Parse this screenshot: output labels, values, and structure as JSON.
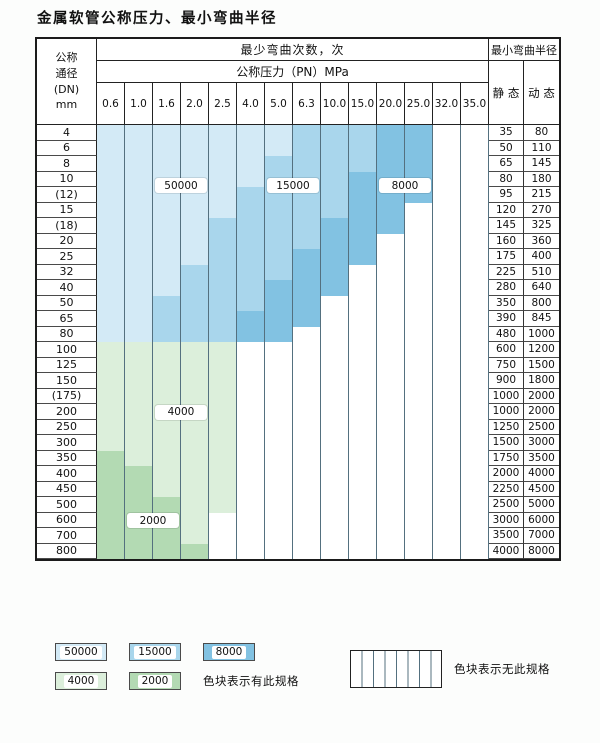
{
  "title": "金属软管公称压力、最小弯曲半径",
  "header": {
    "dn_label_lines": [
      "公称",
      "通径",
      "(DN)",
      "mm"
    ],
    "cycles_label": "最少弯曲次数，次",
    "pressure_label": "公称压力（PN）MPa",
    "radius_label": "最小弯曲半径",
    "static_label": "静 态",
    "dynamic_label": "动 态",
    "pressures": [
      "0.6",
      "1.0",
      "1.6",
      "2.0",
      "2.5",
      "4.0",
      "5.0",
      "6.3",
      "10.0",
      "15.0",
      "20.0",
      "25.0",
      "32.0",
      "35.0"
    ]
  },
  "chart_data": {
    "type": "heatmap",
    "title": "金属软管公称压力、最小弯曲半径",
    "xlabel": "公称压力（PN）MPa",
    "ylabel": "公称通径(DN) mm",
    "x_ticks": [
      "0.6",
      "1.0",
      "1.6",
      "2.0",
      "2.5",
      "4.0",
      "5.0",
      "6.3",
      "10.0",
      "15.0",
      "20.0",
      "25.0",
      "32.0",
      "35.0"
    ],
    "legend_classes": {
      "a": {
        "cycles": "50000",
        "color": "#d3eaf6"
      },
      "b": {
        "cycles": "15000",
        "color": "#a9d6ec"
      },
      "c": {
        "cycles": "8000",
        "color": "#82c2e2"
      },
      "d": {
        "cycles": "4000",
        "color": "#dcefdb"
      },
      "e": {
        "cycles": "2000",
        "color": "#b3dab3"
      },
      "x": {
        "cycles": "无此规格",
        "color": "#ffffff"
      }
    },
    "rows": [
      {
        "dn": "4",
        "cells": "aaaaaaabbbccxx",
        "static": "35",
        "dynamic": "80"
      },
      {
        "dn": "6",
        "cells": "aaaaaaabbbccxx",
        "static": "50",
        "dynamic": "110"
      },
      {
        "dn": "8",
        "cells": "aaaaaabbbbccxx",
        "static": "65",
        "dynamic": "145"
      },
      {
        "dn": "10",
        "cells": "aaaaaabbbcccxx",
        "static": "80",
        "dynamic": "180"
      },
      {
        "dn": "(12)",
        "cells": "aaaaabbbbcccxx",
        "static": "95",
        "dynamic": "215"
      },
      {
        "dn": "15",
        "cells": "aaaaabbbbccxxx",
        "static": "120",
        "dynamic": "270"
      },
      {
        "dn": "(18)",
        "cells": "aaaabbbbcccxxx",
        "static": "145",
        "dynamic": "325"
      },
      {
        "dn": "20",
        "cells": "aaaabbbbccxxxx",
        "static": "160",
        "dynamic": "360"
      },
      {
        "dn": "25",
        "cells": "aaaabbbcccxxxx",
        "static": "175",
        "dynamic": "400"
      },
      {
        "dn": "32",
        "cells": "aaabbbbccxxxxx",
        "static": "225",
        "dynamic": "510"
      },
      {
        "dn": "40",
        "cells": "aaabbbcccxxxxx",
        "static": "280",
        "dynamic": "640"
      },
      {
        "dn": "50",
        "cells": "aabbbbccxxxxxx",
        "static": "350",
        "dynamic": "800"
      },
      {
        "dn": "65",
        "cells": "aabbbcccxxxxxx",
        "static": "390",
        "dynamic": "845"
      },
      {
        "dn": "80",
        "cells": "aabbbccxxxxxxx",
        "static": "480",
        "dynamic": "1000"
      },
      {
        "dn": "100",
        "cells": "dddddxxxxxxxxx",
        "static": "600",
        "dynamic": "1200"
      },
      {
        "dn": "125",
        "cells": "dddddxxxxxxxxx",
        "static": "750",
        "dynamic": "1500"
      },
      {
        "dn": "150",
        "cells": "dddddxxxxxxxxx",
        "static": "900",
        "dynamic": "1800"
      },
      {
        "dn": "(175)",
        "cells": "dddddxxxxxxxxx",
        "static": "1000",
        "dynamic": "2000"
      },
      {
        "dn": "200",
        "cells": "dddddxxxxxxxxx",
        "static": "1000",
        "dynamic": "2000"
      },
      {
        "dn": "250",
        "cells": "dddddxxxxxxxxx",
        "static": "1250",
        "dynamic": "2500"
      },
      {
        "dn": "300",
        "cells": "dddddxxxxxxxxx",
        "static": "1500",
        "dynamic": "3000"
      },
      {
        "dn": "350",
        "cells": "eddddxxxxxxxxx",
        "static": "1750",
        "dynamic": "3500"
      },
      {
        "dn": "400",
        "cells": "eedddxxxxxxxxx",
        "static": "2000",
        "dynamic": "4000"
      },
      {
        "dn": "450",
        "cells": "eedddxxxxxxxxx",
        "static": "2250",
        "dynamic": "4500"
      },
      {
        "dn": "500",
        "cells": "eeeddxxxxxxxxx",
        "static": "2500",
        "dynamic": "5000"
      },
      {
        "dn": "600",
        "cells": "eeedxxxxxxxxxx",
        "static": "3000",
        "dynamic": "6000"
      },
      {
        "dn": "700",
        "cells": "eeedxxxxxxxxxx",
        "static": "3500",
        "dynamic": "7000"
      },
      {
        "dn": "800",
        "cells": "eeeexxxxxxxxxx",
        "static": "4000",
        "dynamic": "8000"
      }
    ],
    "overlay_labels": [
      {
        "text": "50000",
        "row": 3.4,
        "col": 2,
        "span": 2
      },
      {
        "text": "15000",
        "row": 3.4,
        "col": 6,
        "span": 2
      },
      {
        "text": "8000",
        "row": 3.4,
        "col": 10,
        "span": 2
      },
      {
        "text": "4000",
        "row": 18,
        "col": 2,
        "span": 2
      },
      {
        "text": "2000",
        "row": 25,
        "col": 1,
        "span": 2
      }
    ]
  },
  "legend": {
    "available_items": [
      {
        "cycles": "50000",
        "cls": "a"
      },
      {
        "cycles": "15000",
        "cls": "b"
      },
      {
        "cycles": "8000",
        "cls": "c"
      },
      {
        "cycles": "4000",
        "cls": "d"
      },
      {
        "cycles": "2000",
        "cls": "e"
      }
    ],
    "available_caption": "色块表示有此规格",
    "unavailable_caption": "色块表示无此规格"
  }
}
